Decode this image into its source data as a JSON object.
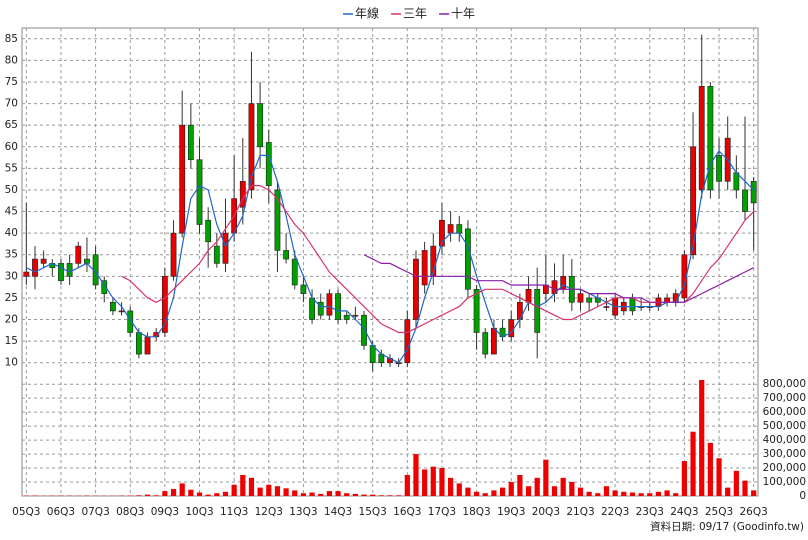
{
  "chart_data": {
    "type": "candlestick",
    "source": "資料日期: 09/17 (Goodinfo.tw)",
    "categories": [
      "05Q3",
      null,
      null,
      null,
      "06Q3",
      null,
      null,
      null,
      "07Q3",
      null,
      null,
      null,
      "08Q3",
      null,
      null,
      null,
      "09Q3",
      null,
      null,
      null,
      "10Q3",
      null,
      null,
      null,
      "11Q3",
      null,
      null,
      null,
      "12Q3",
      null,
      null,
      null,
      "13Q3",
      null,
      null,
      null,
      "14Q3",
      null,
      null,
      null,
      "15Q3",
      null,
      null,
      null,
      "16Q3",
      null,
      null,
      null,
      "17Q3",
      null,
      null,
      null,
      "18Q3",
      null,
      null,
      null,
      "19Q3",
      null,
      null,
      null,
      "20Q3",
      null,
      null,
      null,
      "21Q3",
      null,
      null,
      null,
      "22Q3",
      null,
      null,
      null,
      "23Q3",
      null,
      null,
      null,
      "24Q3",
      null,
      null,
      null,
      "25Q3",
      null,
      null,
      null,
      "26Q3"
    ],
    "open": [
      30,
      30,
      33,
      33,
      33,
      33,
      33,
      34,
      35,
      29,
      24,
      22,
      22,
      17,
      12,
      16,
      17,
      30,
      40,
      65,
      57,
      43,
      37,
      33,
      40,
      46,
      50,
      70,
      61,
      50,
      36,
      34,
      28,
      25,
      24,
      21,
      26,
      21,
      21,
      21,
      14,
      12,
      10,
      10,
      10,
      20,
      28,
      30,
      37,
      40,
      42,
      41,
      27,
      17,
      12,
      18,
      16,
      20,
      24,
      27,
      26,
      26,
      27,
      30,
      24,
      25,
      25,
      23,
      21,
      22,
      25,
      23,
      23,
      23,
      24,
      24,
      25,
      35,
      50,
      74,
      58,
      52,
      54,
      50,
      52
    ],
    "high": [
      47,
      37,
      36,
      34,
      34,
      35,
      38,
      39,
      37,
      30,
      25,
      24,
      23,
      18,
      17,
      18,
      32,
      43,
      73,
      70,
      62,
      46,
      40,
      48,
      58,
      62,
      82,
      75,
      64,
      52,
      40,
      36,
      30,
      27,
      26,
      27,
      27,
      22,
      23,
      22,
      15,
      13,
      12,
      11,
      22,
      36,
      38,
      40,
      47,
      45,
      44,
      43,
      28,
      18,
      20,
      20,
      22,
      26,
      30,
      32,
      35,
      33,
      35,
      34,
      27,
      26,
      26,
      25,
      26,
      25,
      26,
      25,
      24,
      26,
      26,
      27,
      36,
      68,
      86,
      75,
      62,
      67,
      58,
      67,
      53
    ],
    "low": [
      28,
      27,
      32,
      30,
      28,
      28,
      32,
      31,
      27,
      24,
      21,
      21,
      16,
      11,
      12,
      15,
      16,
      29,
      39,
      55,
      40,
      32,
      32,
      31,
      38,
      42,
      48,
      55,
      47,
      31,
      33,
      27,
      24,
      19,
      20,
      20,
      19,
      19,
      20,
      13,
      8,
      9,
      9,
      9,
      9,
      18,
      26,
      28,
      35,
      38,
      38,
      25,
      13,
      11,
      12,
      15,
      15,
      18,
      22,
      11,
      24,
      24,
      26,
      22,
      22,
      22,
      23,
      22,
      20,
      21,
      21,
      22,
      22,
      22,
      23,
      23,
      24,
      34,
      48,
      48,
      48,
      50,
      48,
      43,
      36
    ],
    "close": [
      31,
      34,
      34,
      32,
      29,
      30,
      37,
      33,
      28,
      26,
      22,
      22,
      17,
      12,
      16,
      17,
      30,
      40,
      65,
      57,
      42,
      38,
      33,
      40,
      48,
      52,
      70,
      60,
      51,
      36,
      34,
      28,
      26,
      20,
      21,
      26,
      20,
      20,
      21,
      14,
      10,
      10,
      11,
      10,
      20,
      34,
      36,
      37,
      43,
      42,
      40,
      27,
      17,
      12,
      18,
      16,
      20,
      24,
      27,
      17,
      28,
      29,
      30,
      24,
      26,
      24,
      24,
      23,
      25,
      24,
      22,
      23,
      23,
      25,
      25,
      26,
      35,
      60,
      74,
      50,
      52,
      62,
      50,
      45,
      47
    ],
    "volume": [
      3000,
      3000,
      2000,
      3000,
      3000,
      3000,
      2000,
      3000,
      2000,
      2000,
      2000,
      3000,
      3000,
      5000,
      10000,
      5000,
      35000,
      50000,
      90000,
      45000,
      25000,
      10000,
      20000,
      30000,
      80000,
      150000,
      130000,
      60000,
      80000,
      70000,
      55000,
      40000,
      20000,
      25000,
      15000,
      35000,
      35000,
      20000,
      15000,
      10000,
      10000,
      5000,
      5000,
      5000,
      150000,
      300000,
      190000,
      210000,
      200000,
      130000,
      90000,
      60000,
      30000,
      20000,
      40000,
      60000,
      100000,
      150000,
      70000,
      130000,
      260000,
      70000,
      130000,
      100000,
      60000,
      30000,
      20000,
      70000,
      40000,
      30000,
      25000,
      20000,
      20000,
      30000,
      40000,
      20000,
      250000,
      460000,
      830000,
      380000,
      270000,
      60000,
      180000,
      110000,
      40000
    ],
    "up_color": "#e60000",
    "down_color": "#00a000",
    "volume_color": "#ee0000",
    "series": [
      {
        "name": "年線",
        "color": "#1f66c9",
        "values": [
          32,
          31,
          32,
          33,
          32,
          31,
          32,
          33,
          31,
          28,
          25,
          23,
          20,
          17,
          16,
          16,
          19,
          25,
          37,
          48,
          51,
          50,
          42,
          37,
          40,
          44,
          53,
          58,
          58,
          52,
          44,
          35,
          30,
          25,
          23,
          23,
          22,
          22,
          20,
          18,
          14,
          12,
          11,
          10,
          13,
          18,
          25,
          31,
          38,
          40,
          40,
          37,
          30,
          24,
          18,
          16,
          17,
          20,
          24,
          23,
          24,
          26,
          28,
          27,
          27,
          26,
          25,
          24,
          23,
          23,
          23,
          23,
          23,
          23,
          24,
          24,
          28,
          37,
          49,
          56,
          59,
          57,
          54,
          52,
          50
        ]
      },
      {
        "name": "三年",
        "color": "#d6336c",
        "values": [
          null,
          null,
          null,
          null,
          null,
          null,
          null,
          null,
          null,
          null,
          null,
          30,
          29,
          27,
          25,
          24,
          25,
          27,
          29,
          31,
          33,
          36,
          38,
          41,
          44,
          48,
          51,
          51,
          50,
          48,
          45,
          42,
          40,
          37,
          34,
          31,
          29,
          27,
          25,
          23,
          21,
          19,
          18,
          17,
          17,
          18,
          19,
          20,
          21,
          22,
          23,
          25,
          26,
          27,
          27,
          27,
          26,
          25,
          24,
          23,
          22,
          21,
          20,
          20,
          21,
          22,
          23,
          24,
          25,
          25,
          25,
          24,
          24,
          24,
          24,
          24,
          24,
          26,
          29,
          32,
          34,
          37,
          40,
          43,
          45
        ]
      },
      {
        "name": "十年",
        "color": "#8a1fa8",
        "values": [
          null,
          null,
          null,
          null,
          null,
          null,
          null,
          null,
          null,
          null,
          null,
          null,
          null,
          null,
          null,
          null,
          null,
          null,
          null,
          null,
          null,
          null,
          null,
          null,
          null,
          null,
          null,
          null,
          null,
          null,
          null,
          null,
          null,
          null,
          null,
          null,
          null,
          null,
          null,
          35,
          34,
          33,
          33,
          32,
          31,
          30,
          30,
          30,
          30,
          30,
          30,
          30,
          29,
          29,
          29,
          29,
          28,
          28,
          28,
          28,
          28,
          27,
          27,
          27,
          27,
          26,
          26,
          26,
          26,
          25,
          25,
          25,
          24,
          24,
          24,
          24,
          24,
          25,
          26,
          27,
          28,
          29,
          30,
          31,
          32
        ]
      }
    ],
    "ylim": [
      6,
      87.5
    ],
    "yticks": [
      10,
      15,
      20,
      25,
      30,
      35,
      40,
      45,
      50,
      55,
      60,
      65,
      70,
      75,
      80,
      85
    ],
    "y2lim": [
      0,
      830000
    ],
    "y2ticks": [
      0,
      {
        "value": 100000,
        "label": "100,000"
      },
      {
        "value": 200000,
        "label": "200,000"
      },
      {
        "value": 300000,
        "label": "300,000"
      },
      {
        "value": 400000,
        "label": "400,000"
      },
      {
        "value": 500000,
        "label": "500,000"
      },
      {
        "value": 600000,
        "label": "600,000"
      },
      {
        "value": 700000,
        "label": "700,000"
      },
      {
        "value": 800000,
        "label": "800,000"
      }
    ],
    "grid": true
  }
}
